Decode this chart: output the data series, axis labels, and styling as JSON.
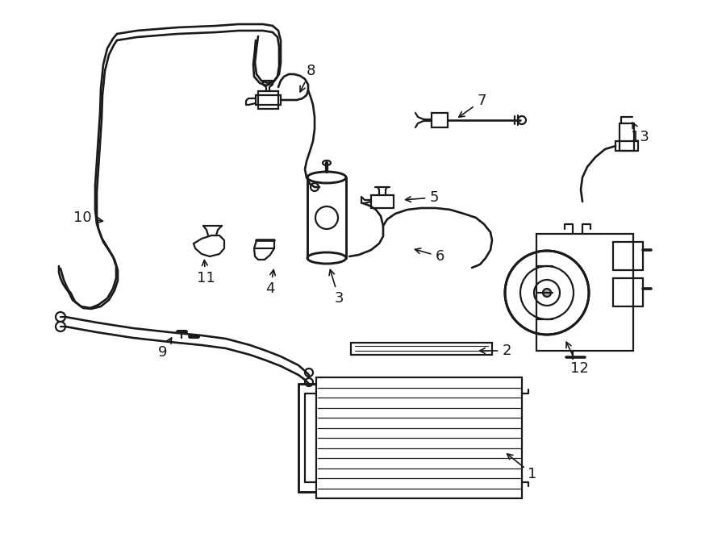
{
  "bg_color": "#ffffff",
  "lc": "#1a1a1a",
  "lw": 1.6,
  "figsize": [
    9.0,
    6.61
  ],
  "dpi": 100,
  "labels_info": [
    [
      "1",
      660,
      588,
      625,
      560
    ],
    [
      "2",
      628,
      435,
      590,
      435
    ],
    [
      "3",
      420,
      370,
      408,
      330
    ],
    [
      "4",
      335,
      358,
      340,
      330
    ],
    [
      "5",
      538,
      245,
      498,
      248
    ],
    [
      "6",
      545,
      318,
      510,
      308
    ],
    [
      "7",
      597,
      125,
      565,
      148
    ],
    [
      "8",
      385,
      88,
      370,
      118
    ],
    [
      "9",
      202,
      437,
      215,
      415
    ],
    [
      "10",
      102,
      270,
      132,
      275
    ],
    [
      "11",
      255,
      345,
      253,
      318
    ],
    [
      "12",
      718,
      457,
      700,
      420
    ],
    [
      "13",
      793,
      170,
      782,
      148
    ]
  ]
}
